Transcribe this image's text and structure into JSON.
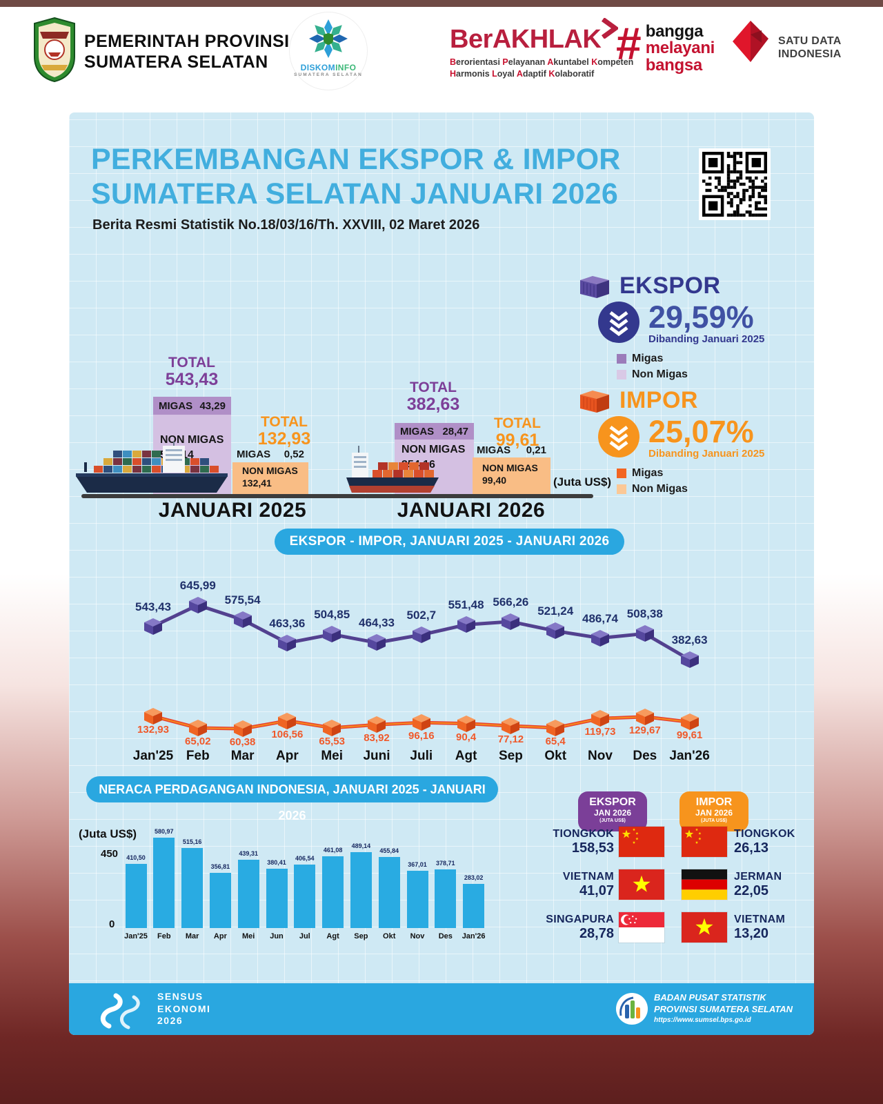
{
  "header": {
    "gov_line1": "PEMERINTAH PROVINSI",
    "gov_line2": "SUMATERA SELATAN",
    "diskominfo_part1": "DISKOM",
    "diskominfo_part2": "INFO",
    "diskominfo_sub": "SUMATERA SELATAN",
    "berakhlak": "BerAKHLAK",
    "berakhlak_tag1": "Berorientasi Pelayanan Akuntabel Kompeten",
    "berakhlak_tag2": "Harmonis Loyal Adaptif Kolaboratif",
    "bangga_hash": "#",
    "bangga_w1": "bangga",
    "bangga_w2": "melayani",
    "bangga_w3": "bangsa",
    "satudata_line1": "SATU DATA",
    "satudata_line2": "INDONESIA"
  },
  "title": {
    "line1": "PERKEMBANGAN EKSPOR & IMPOR",
    "line2": "SUMATERA SELATAN JANUARI 2026",
    "subtitle": "Berita Resmi Statistik No.18/03/16/Th. XXVIII, 02 Maret 2026"
  },
  "summary": {
    "ekspor": {
      "label": "EKSPOR",
      "pct": "29,59%",
      "compare": "Dibanding Januari 2025",
      "legend1": "Migas",
      "legend2": "Non Migas"
    },
    "impor": {
      "label": "IMPOR",
      "pct": "25,07%",
      "compare": "Dibanding Januari 2025",
      "legend1": "Migas",
      "legend2": "Non Migas"
    }
  },
  "chart_data": [
    {
      "type": "bar",
      "title": "Ekspor & Impor Sumatera Selatan, Januari 2025 vs Januari 2026",
      "unit_label": "(Juta US$)",
      "word_total": "TOTAL",
      "word_migas": "MIGAS",
      "word_nonmigas": "NON MIGAS",
      "groups": [
        {
          "label": "JANUARI 2025",
          "ekspor": {
            "total": "543,43",
            "migas": "43,29",
            "non_migas": "500,14"
          },
          "impor": {
            "total": "132,93",
            "migas": "0,52",
            "non_migas": "132,41"
          }
        },
        {
          "label": "JANUARI 2026",
          "ekspor": {
            "total": "382,63",
            "migas": "28,47",
            "non_migas": "354,16"
          },
          "impor": {
            "total": "99,61",
            "migas": "0,21",
            "non_migas": "99,40"
          }
        }
      ]
    },
    {
      "type": "line",
      "title": "EKSPOR - IMPOR, JANUARI 2025 -  JANUARI 2026",
      "categories": [
        "Jan'25",
        "Feb",
        "Mar",
        "Apr",
        "Mei",
        "Juni",
        "Juli",
        "Agt",
        "Sep",
        "Okt",
        "Nov",
        "Des",
        "Jan'26"
      ],
      "series": [
        {
          "name": "Ekspor",
          "color": "#53418f",
          "values": [
            543.43,
            645.99,
            575.54,
            463.36,
            504.85,
            464.33,
            502.7,
            551.48,
            566.26,
            521.24,
            486.74,
            508.38,
            382.63
          ],
          "labels": [
            "543,43",
            "645,99",
            "575,54",
            "463,36",
            "504,85",
            "464,33",
            "502,7",
            "551,48",
            "566,26",
            "521,24",
            "486,74",
            "508,38",
            "382,63"
          ]
        },
        {
          "name": "Impor",
          "color": "#e8432e",
          "values": [
            132.93,
            65.02,
            60.38,
            106.56,
            65.53,
            83.92,
            96.16,
            90.4,
            77.12,
            65.4,
            119.73,
            129.67,
            99.61
          ],
          "labels": [
            "132,93",
            "65,02",
            "60,38",
            "106,56",
            "65,53",
            "83,92",
            "96,16",
            "90,4",
            "77,12",
            "65,4",
            "119,73",
            "129,67",
            "99,61"
          ]
        }
      ]
    },
    {
      "type": "bar",
      "title": "NERACA PERDAGANGAN INDONESIA, JANUARI 2025 - JANUARI 2026",
      "ylabel": "(Juta US$)",
      "yticks": [
        "450",
        "0"
      ],
      "ylim": [
        0,
        600
      ],
      "bar_color": "#29abe2",
      "categories": [
        "Jan'25",
        "Feb",
        "Mar",
        "Apr",
        "Mei",
        "Jun",
        "Jul",
        "Agt",
        "Sep",
        "Okt",
        "Nov",
        "Des",
        "Jan'26"
      ],
      "values": [
        410.5,
        580.97,
        515.16,
        356.81,
        439.31,
        380.41,
        406.54,
        461.08,
        489.14,
        455.84,
        367.01,
        378.71,
        283.02
      ],
      "labels": [
        "410,50",
        "580,97",
        "515,16",
        "356,81",
        "439,31",
        "380,41",
        "406,54",
        "461,08",
        "489,14",
        "455,84",
        "367,01",
        "378,71",
        "283,02"
      ]
    }
  ],
  "partners": {
    "ekspor": {
      "t1": "EKSPOR",
      "t2": "JAN 2026",
      "t3": "(JUTA US$)",
      "rows": [
        {
          "country": "TIONGKOK",
          "value": "158,53",
          "flag": "cn"
        },
        {
          "country": "VIETNAM",
          "value": "41,07",
          "flag": "vn"
        },
        {
          "country": "SINGAPURA",
          "value": "28,78",
          "flag": "sg"
        }
      ]
    },
    "impor": {
      "t1": "IMPOR",
      "t2": "JAN 2026",
      "t3": "(JUTA US$)",
      "rows": [
        {
          "country": "TIONGKOK",
          "value": "26,13",
          "flag": "cn"
        },
        {
          "country": "JERMAN",
          "value": "22,05",
          "flag": "de"
        },
        {
          "country": "VIETNAM",
          "value": "13,20",
          "flag": "vn"
        }
      ]
    }
  },
  "footer": {
    "sensus_l1": "SENSUS",
    "sensus_l2": "EKONOMI",
    "sensus_l3": "2026",
    "bps_l1": "BADAN PUSAT STATISTIK",
    "bps_l2": "PROVINSI SUMATERA SELATAN",
    "bps_l3": "https://www.sumsel.bps.go.id"
  },
  "colors": {
    "panel_bg": "#cfe9f4",
    "accent_blue": "#29abe2",
    "title_blue": "#42aede",
    "purple_dark": "#33388e",
    "purple_total": "#7d3f98",
    "ekspor_bar": "#d4c0e2",
    "ekspor_band": "#b08fc7",
    "orange": "#f7941d",
    "impor_bar": "#f9bd85",
    "line_ekspor": "#53418f",
    "line_impor": "#e8432e",
    "frame_maroon": "#6f2725"
  }
}
